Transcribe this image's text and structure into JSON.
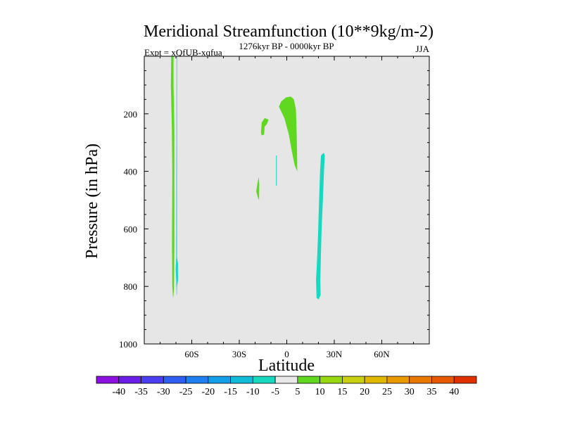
{
  "chart_data": {
    "type": "contour",
    "title": "Meridional Streamfunction (10**9kg/m-2)",
    "subtitle": "1276kyr BP - 0000kyr BP",
    "left_label": "Expt = xQfUB-xqfua",
    "right_label": "JJA",
    "xlabel": "Latitude",
    "ylabel": "Pressure (in hPa)",
    "xlim": [
      -90,
      90
    ],
    "ylim": [
      1000,
      0
    ],
    "x_ticks": [
      {
        "value": -60,
        "label": "60S"
      },
      {
        "value": -30,
        "label": "30S"
      },
      {
        "value": 0,
        "label": "0"
      },
      {
        "value": 30,
        "label": "30N"
      },
      {
        "value": 60,
        "label": "60N"
      }
    ],
    "y_ticks": [
      {
        "value": 200,
        "label": "200"
      },
      {
        "value": 400,
        "label": "400"
      },
      {
        "value": 600,
        "label": "600"
      },
      {
        "value": 800,
        "label": "800"
      },
      {
        "value": 1000,
        "label": "1000"
      }
    ],
    "background_color": "#e6e6e6",
    "colorbar": {
      "levels": [
        "-40",
        "-35",
        "-30",
        "-25",
        "-20",
        "-15",
        "-10",
        "-5",
        "5",
        "10",
        "15",
        "20",
        "25",
        "30",
        "35",
        "40"
      ],
      "colors": [
        "#8c10e0",
        "#6a1ee6",
        "#4b3df0",
        "#2f5ef2",
        "#1e7ff0",
        "#12a0e8",
        "#10bcd8",
        "#18d8c0",
        "#e8e8e8",
        "#60d820",
        "#98d810",
        "#c8d010",
        "#e0b800",
        "#e89a00",
        "#e87800",
        "#e85800",
        "#e03000"
      ]
    },
    "regions": [
      {
        "name": "green-polar-strip",
        "color": "#60d820",
        "points": [
          [
            -73.0,
            0
          ],
          [
            -71.5,
            0
          ],
          [
            -71.5,
            100
          ],
          [
            -71.0,
            250
          ],
          [
            -71.0,
            650
          ],
          [
            -71.2,
            800
          ],
          [
            -71.5,
            830
          ],
          [
            -71.8,
            840
          ],
          [
            -72.3,
            800
          ],
          [
            -72.5,
            650
          ],
          [
            -72.3,
            400
          ],
          [
            -72.6,
            250
          ],
          [
            -73.2,
            100
          ]
        ]
      },
      {
        "name": "cyan-polar-strip",
        "color": "#18d8c0",
        "points": [
          [
            -69.6,
            0
          ],
          [
            -69.3,
            0
          ],
          [
            -69.3,
            700
          ],
          [
            -68.7,
            720
          ],
          [
            -68.7,
            780
          ],
          [
            -69.3,
            800
          ],
          [
            -69.4,
            830
          ],
          [
            -69.6,
            830
          ],
          [
            -69.8,
            780
          ],
          [
            -70.2,
            740
          ],
          [
            -69.8,
            700
          ]
        ]
      },
      {
        "name": "green-upper-small",
        "color": "#60d820",
        "points": [
          [
            -16.3,
            265
          ],
          [
            -15.8,
            230
          ],
          [
            -14.0,
            215
          ],
          [
            -11.5,
            220
          ],
          [
            -12.5,
            235
          ],
          [
            -14.0,
            245
          ],
          [
            -14.3,
            272
          ],
          [
            -15.8,
            275
          ]
        ]
      },
      {
        "name": "green-upper-large",
        "color": "#60d820",
        "points": [
          [
            -5.0,
            175
          ],
          [
            -3.5,
            157
          ],
          [
            -0.5,
            143
          ],
          [
            2.5,
            140
          ],
          [
            4.5,
            150
          ],
          [
            5.8,
            185
          ],
          [
            6.2,
            260
          ],
          [
            6.5,
            330
          ],
          [
            6.6,
            400
          ],
          [
            5.0,
            380
          ],
          [
            3.2,
            330
          ],
          [
            1.2,
            270
          ],
          [
            -1.5,
            215
          ]
        ]
      },
      {
        "name": "green-mid-small",
        "color": "#60d820",
        "points": [
          [
            -19.3,
            470
          ],
          [
            -18.5,
            440
          ],
          [
            -17.7,
            420
          ],
          [
            -17.4,
            445
          ],
          [
            -17.5,
            500
          ],
          [
            -18.3,
            490
          ]
        ]
      },
      {
        "name": "cyan-mid-line",
        "color": "#18d8c0",
        "points": [
          [
            -6.8,
            345
          ],
          [
            -6.3,
            345
          ],
          [
            -6.3,
            450
          ],
          [
            -6.8,
            450
          ]
        ]
      },
      {
        "name": "cyan-nh-tongue",
        "color": "#18d8c0",
        "points": [
          [
            21.6,
            345
          ],
          [
            23.4,
            335
          ],
          [
            24.0,
            345
          ],
          [
            23.5,
            400
          ],
          [
            22.8,
            500
          ],
          [
            22.0,
            600
          ],
          [
            21.5,
            700
          ],
          [
            21.2,
            780
          ],
          [
            21.4,
            830
          ],
          [
            20.2,
            845
          ],
          [
            18.8,
            840
          ],
          [
            18.5,
            775
          ],
          [
            19.0,
            720
          ],
          [
            19.7,
            630
          ],
          [
            20.4,
            500
          ],
          [
            21.0,
            400
          ]
        ]
      }
    ]
  }
}
